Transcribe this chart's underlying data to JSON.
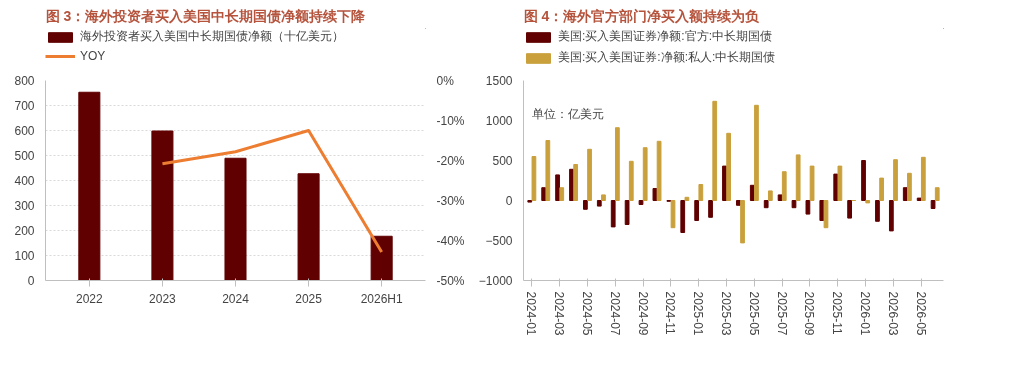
{
  "chart_data": [
    {
      "type": "bar",
      "title": "图 3：海外投资者买入美国中长期国债净额持续下降",
      "categories": [
        "2022",
        "2023",
        "2024",
        "2025",
        "2026H1"
      ],
      "series": [
        {
          "name": "海外投资者买入美国中长期国债净额（十亿美元）",
          "color": "#600000",
          "values": [
            753,
            598,
            489,
            427,
            177
          ]
        },
        {
          "name": "YOY",
          "type": "line",
          "axis": "y2",
          "color": "#ed7d31",
          "values": [
            null,
            -20.8,
            -17.8,
            -12.5,
            -42.9
          ]
        }
      ],
      "ylim": [
        0,
        800
      ],
      "yticks": [
        0,
        100,
        200,
        300,
        400,
        500,
        600,
        700,
        800
      ],
      "y2lim": [
        -50,
        0
      ],
      "y2ticks": [
        {
          "value": -50,
          "label": "-50%"
        },
        {
          "value": -40,
          "label": "-40%"
        },
        {
          "value": -30,
          "label": "-30%"
        },
        {
          "value": -20,
          "label": "-20%"
        },
        {
          "value": -10,
          "label": "-10%"
        },
        {
          "value": 0,
          "label": "0%"
        }
      ],
      "grid": "y",
      "legend": "top"
    },
    {
      "type": "bar",
      "title": "图 4：海外官方部门净买入额持续为负",
      "annotations": [
        "单位：亿美元"
      ],
      "categories": [
        "2024-01",
        null,
        "2024-03",
        null,
        "2024-05",
        null,
        "2024-07",
        null,
        "2024-09",
        null,
        "2024-11",
        null,
        "2025-01",
        null,
        "2025-03",
        null,
        "2025-05",
        null,
        "2025-07",
        null,
        "2025-09",
        null,
        "2025-11",
        null,
        "2026-01",
        null,
        "2026-03",
        null,
        "2026-05",
        null
      ],
      "series": [
        {
          "name": "美国:买入美国证券净额:官方:中长期国债",
          "color": "#600000",
          "values": [
            -20,
            160,
            320,
            390,
            -110,
            -70,
            -330,
            -300,
            -50,
            150,
            -10,
            -400,
            -250,
            -210,
            430,
            -60,
            190,
            -90,
            70,
            -90,
            -170,
            -250,
            330,
            -220,
            500,
            -260,
            -380,
            160,
            30,
            -100
          ]
        },
        {
          "name": "美国:买入美国证券:净额:私人:中长期国债",
          "color": "#c9a03c",
          "values": [
            550,
            750,
            160,
            450,
            640,
            70,
            910,
            490,
            660,
            740,
            -340,
            40,
            200,
            1240,
            840,
            -530,
            1190,
            120,
            360,
            570,
            430,
            -340,
            430,
            0,
            -30,
            280,
            510,
            340,
            540,
            160
          ]
        }
      ],
      "ylim": [
        -1000,
        1500
      ],
      "yticks": [
        -1000,
        -500,
        0,
        500,
        1000,
        1500
      ],
      "legend": "top"
    }
  ]
}
